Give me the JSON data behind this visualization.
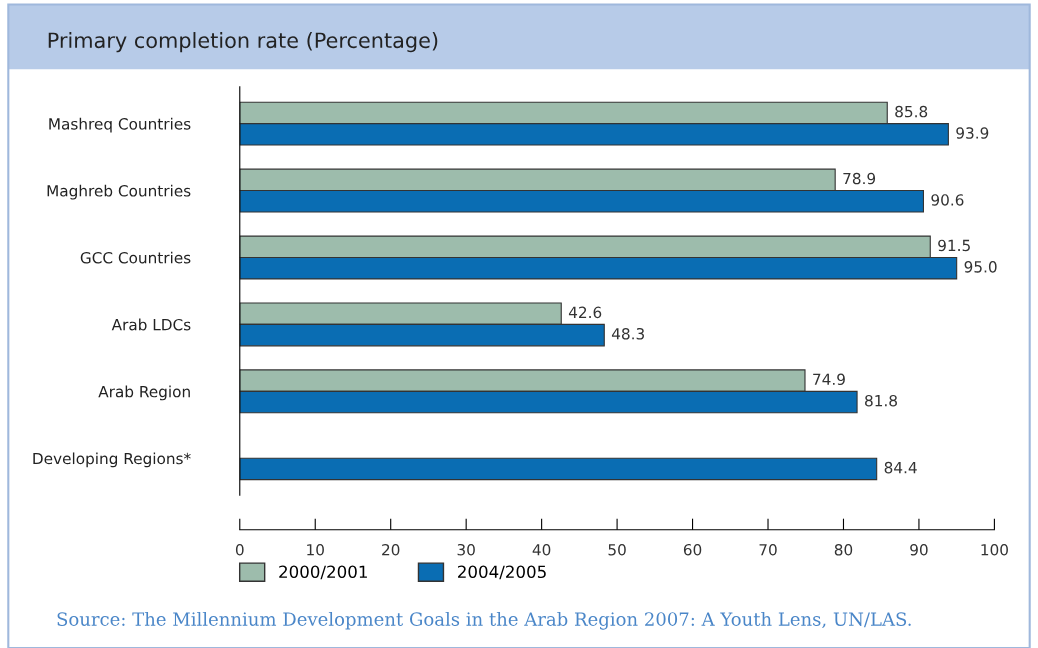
{
  "chart_data": {
    "type": "bar",
    "orientation": "horizontal",
    "title": "Primary completion rate (Percentage)",
    "categories": [
      "Mashreq Countries",
      "Maghreb Countries",
      "GCC Countries",
      "Arab LDCs",
      "Arab Region",
      "Developing Regions*"
    ],
    "series": [
      {
        "name": "2000/2001",
        "color": "#9dbcac",
        "values": [
          85.8,
          78.9,
          91.5,
          42.6,
          74.9,
          null
        ],
        "value_labels": [
          "85.8",
          "78.9",
          "91.5",
          "42.6",
          "74.9",
          null
        ]
      },
      {
        "name": "2004/2005",
        "color": "#0a6db3",
        "values": [
          93.9,
          90.6,
          95.0,
          48.3,
          81.8,
          84.4
        ],
        "value_labels": [
          "93.9",
          "90.6",
          "95.0",
          "48.3",
          "81.8",
          "84.4"
        ]
      }
    ],
    "xlim": [
      0,
      100
    ],
    "xticks": [
      0,
      10,
      20,
      30,
      40,
      50,
      60,
      70,
      80,
      90,
      100
    ],
    "grid": false,
    "legend": "bottom left",
    "annotations": [
      "Source: The Millennium Development Goals in the Arab Region 2007: A Youth Lens, UN/LAS."
    ]
  }
}
